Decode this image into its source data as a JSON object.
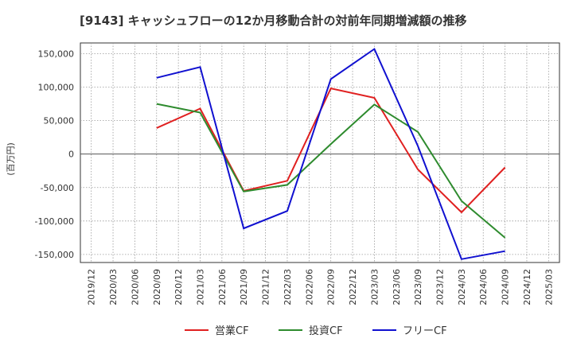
{
  "chart_data": {
    "type": "line",
    "title": "[9143]  キャッシュフローの12か月移動合計の対前年同期増減額の推移",
    "ylabel": "(百万円)",
    "xlabel": "",
    "ylim": [
      -162000,
      166000
    ],
    "yticks": [
      150000,
      100000,
      50000,
      0,
      -50000,
      -100000,
      -150000
    ],
    "ytick_labels": [
      "150,000",
      "100,000",
      "50,000",
      "0",
      "-50,000",
      "-100,000",
      "-150,000"
    ],
    "categories": [
      "2019/12",
      "2020/03",
      "2020/06",
      "2020/09",
      "2020/12",
      "2021/03",
      "2021/06",
      "2021/09",
      "2021/12",
      "2022/03",
      "2022/06",
      "2022/09",
      "2022/12",
      "2023/03",
      "2023/06",
      "2023/09",
      "2023/12",
      "2024/03",
      "2024/06",
      "2024/09",
      "2024/12",
      "2025/03"
    ],
    "grid": true,
    "legend_position": "bottom",
    "series": [
      {
        "name": "営業CF",
        "color": "#e02020",
        "values": [
          null,
          null,
          null,
          39000,
          null,
          68000,
          null,
          -55000,
          null,
          -40000,
          null,
          98000,
          null,
          84000,
          null,
          -23000,
          null,
          -87000,
          null,
          -20000,
          null,
          null
        ]
      },
      {
        "name": "投資CF",
        "color": "#2e8b2e",
        "values": [
          null,
          null,
          null,
          75000,
          null,
          62000,
          null,
          -56000,
          null,
          -46000,
          null,
          15000,
          null,
          74000,
          null,
          33000,
          null,
          -70000,
          null,
          -125000,
          null,
          null
        ]
      },
      {
        "name": "フリーCF",
        "color": "#1010d0",
        "values": [
          null,
          null,
          null,
          114000,
          null,
          130000,
          null,
          -111000,
          null,
          -85000,
          null,
          112000,
          null,
          157000,
          null,
          12000,
          null,
          -157000,
          null,
          -145000,
          null,
          null
        ]
      }
    ]
  }
}
